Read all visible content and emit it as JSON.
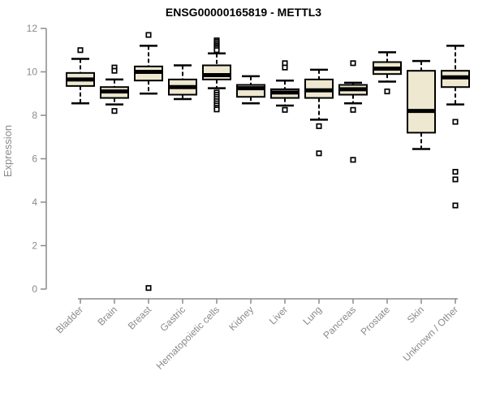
{
  "chart_data": {
    "type": "boxplot",
    "title": "ENSG00000165819 - METTL3",
    "ylabel": "Expression",
    "xlabel": "",
    "ylim": [
      0,
      12
    ],
    "yticks": [
      0,
      2,
      4,
      6,
      8,
      10,
      12
    ],
    "legend": "none",
    "grid": false,
    "categories": [
      "Bladder",
      "Brain",
      "Breast",
      "Gastric",
      "Hematopoietic cells",
      "Kidney",
      "Liver",
      "Lung",
      "Pancreas",
      "Prostate",
      "Skin",
      "Unknown / Other"
    ],
    "boxes": [
      {
        "category": "Bladder",
        "whisker_low": 8.55,
        "q1": 9.35,
        "median": 9.65,
        "q3": 9.95,
        "whisker_high": 10.6,
        "outliers": [
          11.0
        ]
      },
      {
        "category": "Brain",
        "whisker_low": 8.5,
        "q1": 8.8,
        "median": 9.1,
        "q3": 9.3,
        "whisker_high": 9.65,
        "outliers": [
          10.2,
          10.05,
          8.2
        ]
      },
      {
        "category": "Breast",
        "whisker_low": 9.0,
        "q1": 9.6,
        "median": 10.0,
        "q3": 10.25,
        "whisker_high": 11.2,
        "outliers": [
          11.7,
          0.05
        ]
      },
      {
        "category": "Gastric",
        "whisker_low": 8.75,
        "q1": 8.95,
        "median": 9.3,
        "q3": 9.65,
        "whisker_high": 10.3,
        "outliers": []
      },
      {
        "category": "Hematopoietic cells",
        "whisker_low": 9.25,
        "q1": 9.65,
        "median": 9.85,
        "q3": 10.3,
        "whisker_high": 10.85,
        "outliers": [
          11.45,
          11.38,
          11.3,
          11.22,
          11.15,
          11.08,
          11.0,
          9.05,
          8.95,
          8.85,
          8.75,
          8.65,
          8.55,
          8.45,
          8.35,
          8.27
        ]
      },
      {
        "category": "Kidney",
        "whisker_low": 8.55,
        "q1": 8.85,
        "median": 9.25,
        "q3": 9.4,
        "whisker_high": 9.8,
        "outliers": []
      },
      {
        "category": "Liver",
        "whisker_low": 8.45,
        "q1": 8.8,
        "median": 9.05,
        "q3": 9.2,
        "whisker_high": 9.6,
        "outliers": [
          10.4,
          10.2,
          8.25
        ]
      },
      {
        "category": "Lung",
        "whisker_low": 7.8,
        "q1": 8.8,
        "median": 9.15,
        "q3": 9.65,
        "whisker_high": 10.1,
        "outliers": [
          7.5,
          6.25
        ]
      },
      {
        "category": "Pancreas",
        "whisker_low": 8.55,
        "q1": 8.95,
        "median": 9.2,
        "q3": 9.4,
        "whisker_high": 9.5,
        "outliers": [
          10.4,
          8.25,
          5.95
        ]
      },
      {
        "category": "Prostate",
        "whisker_low": 9.55,
        "q1": 9.9,
        "median": 10.15,
        "q3": 10.45,
        "whisker_high": 10.9,
        "outliers": [
          9.1
        ]
      },
      {
        "category": "Skin",
        "whisker_low": 6.45,
        "q1": 7.2,
        "median": 8.2,
        "q3": 10.05,
        "whisker_high": 10.5,
        "outliers": []
      },
      {
        "category": "Unknown / Other",
        "whisker_low": 8.5,
        "q1": 9.3,
        "median": 9.75,
        "q3": 10.05,
        "whisker_high": 11.2,
        "outliers": [
          7.7,
          5.4,
          5.05,
          3.85
        ]
      }
    ],
    "colors": {
      "box_fill": "#EEE8D0",
      "box_stroke": "#000000",
      "median": "#000000",
      "outlier_fill": "#ffffff",
      "axis": "#8a8a8a",
      "title": "#000000"
    }
  }
}
